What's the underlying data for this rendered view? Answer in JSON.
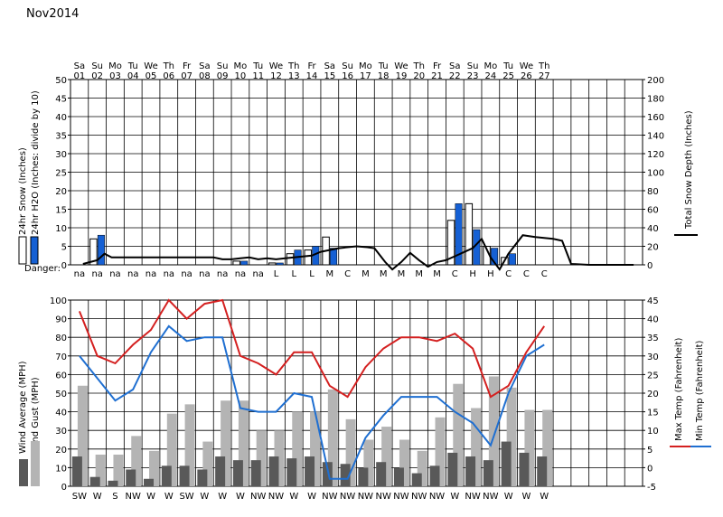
{
  "title": "Nov2014",
  "chart_data": [
    {
      "type": "bar",
      "panel": "snow",
      "days": [
        {
          "dow": "Sa",
          "date": "01"
        },
        {
          "dow": "Su",
          "date": "02"
        },
        {
          "dow": "Mo",
          "date": "03"
        },
        {
          "dow": "Tu",
          "date": "04"
        },
        {
          "dow": "We",
          "date": "05"
        },
        {
          "dow": "Th",
          "date": "06"
        },
        {
          "dow": "Fr",
          "date": "07"
        },
        {
          "dow": "Sa",
          "date": "08"
        },
        {
          "dow": "Su",
          "date": "09"
        },
        {
          "dow": "Mo",
          "date": "10"
        },
        {
          "dow": "Tu",
          "date": "11"
        },
        {
          "dow": "We",
          "date": "12"
        },
        {
          "dow": "Th",
          "date": "13"
        },
        {
          "dow": "Fr",
          "date": "14"
        },
        {
          "dow": "Sa",
          "date": "15"
        },
        {
          "dow": "Su",
          "date": "16"
        },
        {
          "dow": "Mo",
          "date": "17"
        },
        {
          "dow": "Tu",
          "date": "18"
        },
        {
          "dow": "We",
          "date": "19"
        },
        {
          "dow": "Th",
          "date": "20"
        },
        {
          "dow": "Fr",
          "date": "21"
        },
        {
          "dow": "Sa",
          "date": "22"
        },
        {
          "dow": "Su",
          "date": "23"
        },
        {
          "dow": "Mo",
          "date": "24"
        },
        {
          "dow": "Tu",
          "date": "25"
        },
        {
          "dow": "We",
          "date": "26"
        },
        {
          "dow": "Th",
          "date": "27"
        }
      ],
      "ylabel_left": "24hr Snow (Inches)",
      "ylabel_left2": "24hr H2O (Inches: divide by 10)",
      "ylabel_right": "Total Snow Depth (Inches)",
      "ylim_left": [
        0,
        50
      ],
      "ylim_right": [
        0,
        200
      ],
      "yticks_left": [
        0,
        5,
        10,
        15,
        20,
        25,
        30,
        35,
        40,
        45,
        50
      ],
      "yticks_right": [
        0,
        20,
        40,
        60,
        80,
        100,
        120,
        140,
        160,
        180,
        200
      ],
      "series": [
        {
          "name": "24hr Snow (Inches)",
          "color": "#ffffff",
          "values": [
            0,
            7,
            0,
            0,
            0,
            0,
            0,
            0,
            0,
            1,
            0,
            0.5,
            3,
            4,
            7.5,
            0,
            0,
            0,
            0,
            0,
            0,
            12,
            16.5,
            5,
            2,
            0,
            0
          ]
        },
        {
          "name": "24hr H2O (Inches: divide by 10)",
          "color": "#1560d4",
          "values": [
            0,
            8,
            0,
            0,
            0,
            0,
            0,
            0,
            0,
            1,
            0,
            0.5,
            4,
            5,
            4.5,
            0,
            0,
            0,
            0,
            0,
            0,
            16.5,
            9.5,
            4.5,
            3,
            0,
            0
          ]
        },
        {
          "name": "Total Snow Depth (Inches)",
          "color": "#000000",
          "type": "line",
          "axis": "right",
          "x": [
            0.7,
            1.5,
            1.9,
            2.3,
            3,
            4,
            5,
            6,
            7,
            8,
            8.5,
            9,
            9.5,
            10,
            10.5,
            11,
            11.5,
            12,
            12.5,
            13,
            13.5,
            14,
            15,
            16,
            16.6,
            17,
            17.6,
            18,
            18.5,
            19,
            19.5,
            20,
            20.5,
            21,
            22.5,
            23,
            23.5,
            24,
            24.5,
            25.3,
            26,
            27,
            27.5,
            28,
            29,
            30,
            31.5
          ],
          "y": [
            1,
            5,
            12,
            8,
            8,
            8,
            8,
            8,
            8,
            8,
            6,
            6,
            7,
            8,
            6,
            7,
            6,
            7,
            8,
            9,
            10,
            14,
            18,
            20,
            19,
            18,
            3,
            -5,
            3,
            13,
            5,
            -2,
            3,
            5,
            18,
            28,
            8,
            -5,
            12,
            32,
            30,
            28,
            26,
            1,
            0,
            0,
            0
          ]
        }
      ],
      "danger_label": "Danger:",
      "danger": [
        "na",
        "na",
        "na",
        "na",
        "na",
        "na",
        "na",
        "na",
        "na",
        "na",
        "na",
        "L",
        "L",
        "L",
        "M",
        "C",
        "M",
        "M",
        "M",
        "M",
        "M",
        "C",
        "H",
        "H",
        "C",
        "C",
        "C"
      ]
    },
    {
      "type": "bar",
      "panel": "wind-temp",
      "ylabel_left": "Wind Average (MPH)",
      "ylabel_left2": "Wind Gust (MPH)",
      "ylabel_right": "Max Temp (Fahrenheit)",
      "ylabel_right2": "Min Temp (Fahrenheit)",
      "ylim_left": [
        0,
        100
      ],
      "ylim_right": [
        -5,
        45
      ],
      "yticks_left": [
        0,
        10,
        20,
        30,
        40,
        50,
        60,
        70,
        80,
        90,
        100
      ],
      "yticks_right": [
        -5,
        0,
        5,
        10,
        15,
        20,
        25,
        30,
        35,
        40,
        45
      ],
      "series": [
        {
          "name": "Wind Gust (MPH)",
          "color": "#b4b4b4",
          "values": [
            54,
            17,
            17,
            27,
            19,
            39,
            44,
            24,
            46,
            46,
            30,
            30,
            40,
            40,
            52,
            36,
            25,
            32,
            25,
            19,
            37,
            55,
            42,
            59,
            53,
            41,
            41
          ]
        },
        {
          "name": "Wind Average (MPH)",
          "color": "#595959",
          "values": [
            16,
            5,
            3,
            9,
            4,
            11,
            11,
            9,
            16,
            14,
            14,
            16,
            15,
            16,
            13,
            12,
            10,
            13,
            10,
            7,
            11,
            18,
            16,
            14,
            24,
            18,
            16
          ]
        },
        {
          "name": "Max Temp (Fahrenheit)",
          "color": "#d42020",
          "axis": "right",
          "values": [
            42,
            30,
            28,
            33,
            37,
            45,
            40,
            44,
            45,
            30,
            28,
            25,
            31,
            31,
            22,
            19,
            27,
            32,
            35,
            35,
            34,
            36,
            32,
            19,
            22,
            31,
            38
          ]
        },
        {
          "name": "Min Temp (Fahrenheit)",
          "color": "#1f6fd1",
          "axis": "right",
          "values": [
            30,
            24,
            18,
            21,
            31,
            38,
            34,
            35,
            35,
            16,
            15,
            15,
            20,
            19,
            -3,
            -3,
            8,
            14,
            19,
            19,
            19,
            15,
            12,
            6,
            20,
            30,
            33
          ]
        }
      ],
      "wind_dir": [
        "SW",
        "W",
        "S",
        "NW",
        "W",
        "W",
        "SW",
        "W",
        "W",
        "W",
        "NW",
        "NW",
        "W",
        "W",
        "NW",
        "NW",
        "NW",
        "NW",
        "NW",
        "NW",
        "NW",
        "W",
        "NW",
        "NW",
        "W",
        "W",
        "W"
      ]
    }
  ]
}
